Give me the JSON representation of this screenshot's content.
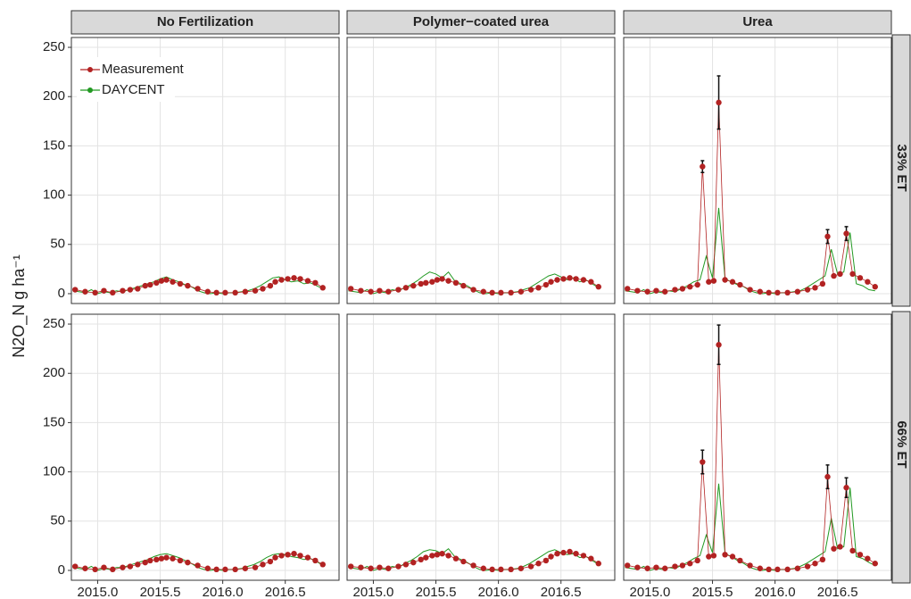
{
  "chart_data": {
    "type": "faceted_line",
    "y_label": "N2O_N g ha⁻¹",
    "columns": [
      "No Fertilization",
      "Polymer−coated urea",
      "Urea"
    ],
    "rows": [
      "33% ET",
      "66% ET"
    ],
    "xlim": [
      2014.79,
      2016.93
    ],
    "xticks": [
      {
        "value": 2015,
        "label": "2015.0"
      },
      {
        "value": 2015.5,
        "label": "2015.5"
      },
      {
        "value": 2016,
        "label": "2016.0"
      },
      {
        "value": 2016.5,
        "label": "2016.5"
      }
    ],
    "ylim": [
      -10,
      260
    ],
    "yticks": [
      0,
      50,
      100,
      150,
      200,
      250
    ],
    "grid": true,
    "legend": "top-left",
    "series": [
      {
        "name": "Measurement",
        "color": "#b22222"
      },
      {
        "name": "DAYCENT",
        "color": "#229922"
      }
    ],
    "sample_dates": [
      2014.82,
      2014.9,
      2014.98,
      2015.05,
      2015.12,
      2015.2,
      2015.26,
      2015.32,
      2015.38,
      2015.42,
      2015.47,
      2015.51,
      2015.55,
      2015.6,
      2015.66,
      2015.72,
      2015.8,
      2015.88,
      2015.95,
      2016.02,
      2016.1,
      2016.18,
      2016.26,
      2016.32,
      2016.38,
      2016.42,
      2016.47,
      2016.52,
      2016.57,
      2016.62,
      2016.68,
      2016.74,
      2016.8
    ],
    "model_dates": [
      2014.8,
      2014.85,
      2014.9,
      2014.95,
      2015.0,
      2015.05,
      2015.1,
      2015.15,
      2015.2,
      2015.25,
      2015.3,
      2015.35,
      2015.4,
      2015.45,
      2015.5,
      2015.55,
      2015.6,
      2015.65,
      2015.7,
      2015.75,
      2015.8,
      2015.85,
      2015.9,
      2015.95,
      2016.0,
      2016.05,
      2016.1,
      2016.15,
      2016.2,
      2016.25,
      2016.3,
      2016.35,
      2016.4,
      2016.45,
      2016.5,
      2016.55,
      2016.6,
      2016.65,
      2016.7,
      2016.75,
      2016.8
    ],
    "panels": [
      {
        "measurement": [
          4,
          2,
          1,
          3,
          1,
          3,
          4,
          5,
          8,
          9,
          11,
          13,
          14,
          12,
          10,
          8,
          5,
          2,
          1,
          1,
          1,
          2,
          3,
          5,
          8,
          12,
          14,
          15,
          16,
          15,
          13,
          11,
          6
        ],
        "errors": [
          null,
          null,
          null,
          null,
          null,
          null,
          null,
          null,
          null,
          null,
          null,
          null,
          null,
          null,
          null,
          null,
          null,
          null,
          null,
          null,
          null,
          null,
          null,
          null,
          null,
          null,
          null,
          null,
          null,
          null,
          null,
          null,
          null
        ],
        "daycent": [
          3,
          2,
          1,
          4,
          0,
          2,
          1,
          3,
          2,
          4,
          6,
          8,
          10,
          12,
          15,
          17,
          14,
          12,
          9,
          7,
          3,
          1,
          0,
          1,
          0,
          1,
          1,
          2,
          3,
          5,
          8,
          12,
          16,
          17,
          14,
          12,
          13,
          10,
          11,
          8,
          5
        ]
      },
      {
        "measurement": [
          5,
          3,
          2,
          3,
          2,
          4,
          6,
          8,
          10,
          11,
          12,
          14,
          15,
          13,
          11,
          8,
          4,
          2,
          1,
          1,
          1,
          2,
          4,
          6,
          9,
          12,
          14,
          15,
          16,
          15,
          14,
          12,
          7
        ],
        "errors": [
          null,
          null,
          null,
          null,
          null,
          null,
          null,
          null,
          null,
          null,
          null,
          null,
          null,
          null,
          null,
          null,
          null,
          null,
          null,
          null,
          null,
          null,
          null,
          null,
          null,
          null,
          null,
          null,
          null,
          null,
          null,
          null,
          null
        ],
        "daycent": [
          3,
          2,
          1,
          4,
          0,
          2,
          1,
          4,
          3,
          6,
          9,
          13,
          18,
          22,
          20,
          16,
          22,
          13,
          10,
          8,
          4,
          1,
          0,
          1,
          0,
          1,
          1,
          2,
          4,
          6,
          10,
          14,
          18,
          20,
          17,
          14,
          16,
          12,
          14,
          10,
          6
        ]
      },
      {
        "measurement": [
          5,
          3,
          2,
          3,
          2,
          4,
          5,
          7,
          9,
          129,
          12,
          13,
          194,
          14,
          12,
          9,
          4,
          2,
          1,
          1,
          1,
          2,
          4,
          6,
          10,
          58,
          18,
          20,
          61,
          20,
          16,
          12,
          7
        ],
        "errors": [
          null,
          null,
          null,
          null,
          null,
          null,
          null,
          null,
          null,
          6,
          null,
          null,
          27,
          null,
          null,
          null,
          null,
          null,
          null,
          null,
          null,
          null,
          null,
          null,
          null,
          7,
          null,
          null,
          7,
          null,
          null,
          null,
          null
        ],
        "daycent": [
          3,
          2,
          1,
          4,
          0,
          2,
          1,
          3,
          2,
          5,
          8,
          12,
          14,
          38,
          16,
          87,
          15,
          12,
          9,
          7,
          3,
          1,
          0,
          1,
          0,
          1,
          1,
          2,
          3,
          6,
          10,
          14,
          18,
          45,
          20,
          22,
          62,
          10,
          8,
          4,
          3
        ]
      },
      {
        "measurement": [
          4,
          2,
          1,
          3,
          1,
          3,
          4,
          6,
          8,
          10,
          11,
          12,
          13,
          12,
          10,
          8,
          5,
          2,
          1,
          1,
          1,
          2,
          3,
          6,
          9,
          13,
          15,
          16,
          17,
          15,
          13,
          10,
          6
        ],
        "errors": [
          null,
          null,
          null,
          null,
          null,
          null,
          null,
          null,
          null,
          null,
          null,
          null,
          null,
          null,
          null,
          null,
          null,
          null,
          null,
          null,
          null,
          null,
          null,
          null,
          null,
          null,
          null,
          null,
          null,
          null,
          null,
          null,
          null
        ],
        "daycent": [
          3,
          2,
          1,
          4,
          0,
          2,
          1,
          3,
          3,
          5,
          7,
          9,
          11,
          14,
          16,
          17,
          15,
          13,
          10,
          7,
          3,
          1,
          0,
          1,
          0,
          1,
          1,
          2,
          4,
          6,
          9,
          13,
          16,
          17,
          16,
          14,
          13,
          11,
          12,
          9,
          5
        ]
      },
      {
        "measurement": [
          4,
          3,
          2,
          3,
          2,
          4,
          6,
          8,
          11,
          13,
          15,
          16,
          17,
          15,
          12,
          9,
          5,
          2,
          1,
          1,
          1,
          2,
          4,
          7,
          10,
          14,
          17,
          18,
          19,
          17,
          15,
          12,
          7
        ],
        "errors": [
          null,
          null,
          null,
          null,
          null,
          null,
          null,
          null,
          null,
          null,
          null,
          null,
          null,
          null,
          null,
          null,
          null,
          null,
          null,
          null,
          null,
          null,
          null,
          null,
          null,
          null,
          null,
          null,
          null,
          null,
          null,
          null,
          null
        ],
        "daycent": [
          3,
          2,
          1,
          4,
          0,
          2,
          1,
          4,
          3,
          7,
          10,
          14,
          19,
          21,
          20,
          17,
          22,
          14,
          11,
          8,
          4,
          1,
          0,
          1,
          0,
          1,
          1,
          2,
          4,
          7,
          11,
          15,
          19,
          21,
          18,
          16,
          17,
          13,
          14,
          10,
          6
        ]
      },
      {
        "measurement": [
          5,
          3,
          2,
          3,
          2,
          4,
          5,
          7,
          10,
          110,
          14,
          15,
          229,
          16,
          14,
          10,
          5,
          2,
          1,
          1,
          1,
          2,
          4,
          7,
          11,
          95,
          22,
          24,
          84,
          20,
          16,
          12,
          7
        ],
        "errors": [
          null,
          null,
          null,
          null,
          null,
          null,
          null,
          null,
          null,
          12,
          null,
          null,
          20,
          null,
          null,
          null,
          null,
          null,
          null,
          null,
          null,
          null,
          null,
          null,
          null,
          12,
          null,
          null,
          10,
          null,
          null,
          null,
          null
        ],
        "daycent": [
          3,
          2,
          1,
          4,
          0,
          2,
          1,
          3,
          2,
          5,
          8,
          12,
          15,
          36,
          18,
          88,
          17,
          14,
          10,
          7,
          3,
          1,
          0,
          1,
          0,
          1,
          1,
          2,
          4,
          7,
          11,
          15,
          19,
          53,
          22,
          24,
          84,
          14,
          12,
          8,
          5
        ]
      }
    ]
  }
}
